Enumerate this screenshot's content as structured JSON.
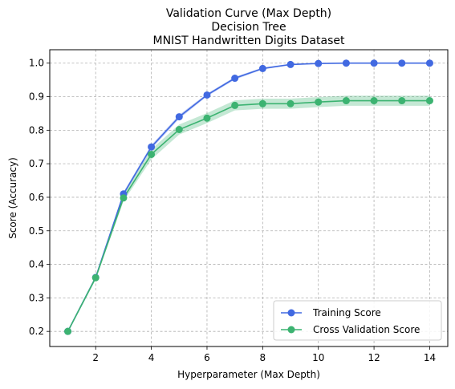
{
  "chart_data": {
    "type": "line",
    "title_lines": [
      "Validation Curve (Max Depth)",
      "Decision Tree",
      "MNIST Handwritten Digits Dataset"
    ],
    "xlabel": "Hyperparameter (Max Depth)",
    "ylabel": "Score (Accuracy)",
    "xlim": [
      0.35,
      14.65
    ],
    "ylim": [
      0.155,
      1.04
    ],
    "xticks": [
      2,
      4,
      6,
      8,
      10,
      12,
      14
    ],
    "yticks": [
      0.2,
      0.3,
      0.4,
      0.5,
      0.6,
      0.7,
      0.8,
      0.9,
      1.0
    ],
    "ytick_labels": [
      "0.2",
      "0.3",
      "0.4",
      "0.5",
      "0.6",
      "0.7",
      "0.8",
      "0.9",
      "1.0"
    ],
    "grid": true,
    "legend_position": "lower-right",
    "x": [
      1,
      2,
      3,
      4,
      5,
      6,
      7,
      8,
      9,
      10,
      11,
      12,
      13,
      14
    ],
    "series": [
      {
        "name": "Training Score",
        "color": "#4169E1",
        "values": [
          0.2,
          0.361,
          0.61,
          0.75,
          0.84,
          0.905,
          0.955,
          0.984,
          0.996,
          0.999,
          1.0,
          1.0,
          1.0,
          1.0
        ],
        "band": [
          0.004,
          0.004,
          0.006,
          0.006,
          0.006,
          0.004,
          0.004,
          0.003,
          0.002,
          0.001,
          0.0,
          0.0,
          0.0,
          0.0
        ]
      },
      {
        "name": "Cross Validation Score",
        "color": "#3CB371",
        "values": [
          0.2,
          0.36,
          0.598,
          0.728,
          0.802,
          0.836,
          0.874,
          0.879,
          0.879,
          0.884,
          0.888,
          0.888,
          0.888,
          0.888
        ],
        "band": [
          0.004,
          0.006,
          0.01,
          0.015,
          0.015,
          0.015,
          0.015,
          0.015,
          0.015,
          0.015,
          0.015,
          0.015,
          0.015,
          0.015
        ]
      }
    ]
  }
}
